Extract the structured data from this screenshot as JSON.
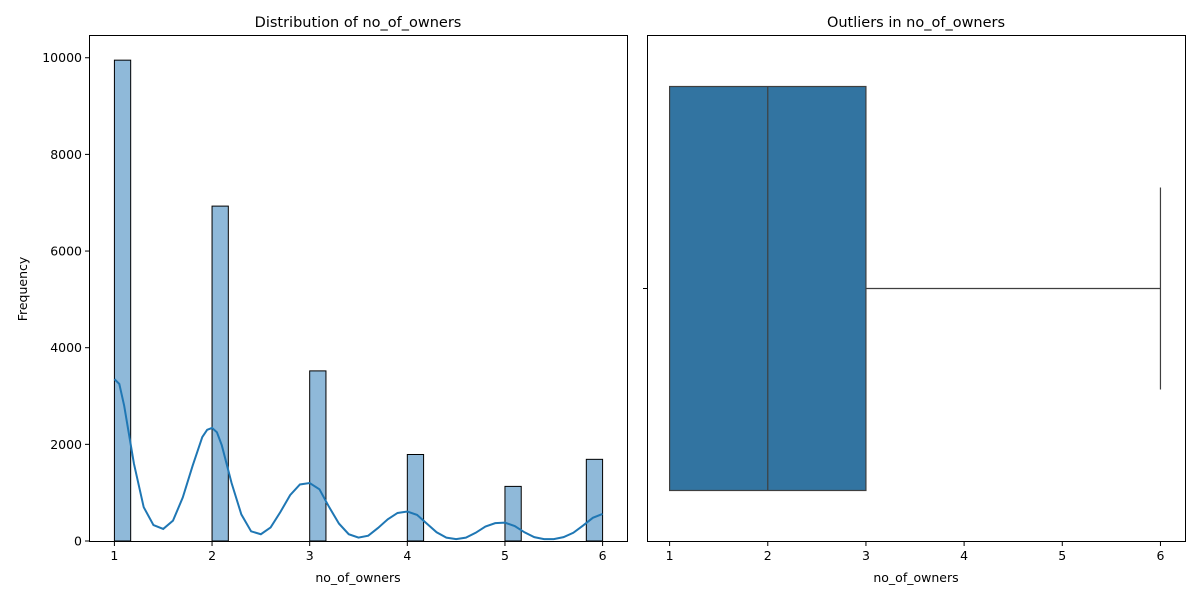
{
  "chart_data": [
    {
      "type": "bar",
      "subtype": "histogram-with-kde",
      "title": "Distribution of no_of_owners",
      "xlabel": "no_of_owners",
      "ylabel": "Frequency",
      "xlim": [
        0.75,
        6.25
      ],
      "ylim": [
        0,
        10450
      ],
      "xticks": [
        1,
        2,
        3,
        4,
        5,
        6
      ],
      "yticks": [
        0,
        2000,
        4000,
        6000,
        8000,
        10000
      ],
      "bar_color": "#8fb9d9",
      "kde_color": "#1f77b4",
      "bars": [
        {
          "x0": 1.0,
          "x1": 1.1667,
          "value": 9950
        },
        {
          "x0": 2.0,
          "x1": 2.1667,
          "value": 6930
        },
        {
          "x0": 3.0,
          "x1": 3.1667,
          "value": 3520
        },
        {
          "x0": 4.0,
          "x1": 4.1667,
          "value": 1790
        },
        {
          "x0": 5.0,
          "x1": 5.1667,
          "value": 1130
        },
        {
          "x0": 5.8333,
          "x1": 6.0,
          "value": 1690
        }
      ],
      "kde": {
        "x": [
          1.0,
          1.05,
          1.1,
          1.2,
          1.3,
          1.4,
          1.5,
          1.6,
          1.7,
          1.8,
          1.9,
          1.95,
          2.0,
          2.05,
          2.1,
          2.2,
          2.3,
          2.4,
          2.5,
          2.6,
          2.7,
          2.8,
          2.9,
          3.0,
          3.1,
          3.2,
          3.3,
          3.4,
          3.5,
          3.6,
          3.7,
          3.8,
          3.9,
          4.0,
          4.1,
          4.2,
          4.3,
          4.4,
          4.5,
          4.6,
          4.7,
          4.8,
          4.9,
          5.0,
          5.1,
          5.2,
          5.3,
          5.4,
          5.5,
          5.6,
          5.7,
          5.8,
          5.9,
          6.0
        ],
        "y": [
          3350,
          3250,
          2800,
          1600,
          700,
          330,
          250,
          420,
          900,
          1550,
          2150,
          2300,
          2340,
          2250,
          1980,
          1200,
          550,
          200,
          140,
          280,
          600,
          950,
          1170,
          1200,
          1070,
          700,
          360,
          140,
          70,
          110,
          270,
          450,
          580,
          610,
          540,
          360,
          180,
          70,
          40,
          70,
          170,
          300,
          370,
          380,
          310,
          180,
          80,
          40,
          40,
          80,
          170,
          320,
          480,
          560
        ]
      }
    },
    {
      "type": "box",
      "title": "Outliers in no_of_owners",
      "xlabel": "no_of_owners",
      "xlim": [
        0.78,
        6.25
      ],
      "xticks": [
        1,
        2,
        3,
        4,
        5,
        6
      ],
      "box_color": "#3274a1",
      "line_color": "#3f3f3f",
      "stats": {
        "whislo": 1,
        "q1": 1,
        "median": 2,
        "q3": 3,
        "whishi": 6
      }
    }
  ]
}
